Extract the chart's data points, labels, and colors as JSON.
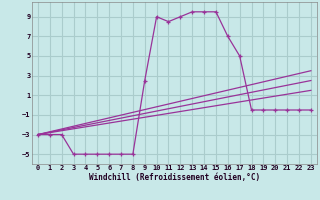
{
  "background_color": "#c8e8e8",
  "grid_color": "#aacccc",
  "line_color": "#993399",
  "xlabel": "Windchill (Refroidissement éolien,°C)",
  "xlim": [
    -0.5,
    23.5
  ],
  "ylim": [
    -6,
    10.5
  ],
  "yticks": [
    -5,
    -3,
    -1,
    1,
    3,
    5,
    7,
    9
  ],
  "xticks": [
    0,
    1,
    2,
    3,
    4,
    5,
    6,
    7,
    8,
    9,
    10,
    11,
    12,
    13,
    14,
    15,
    16,
    17,
    18,
    19,
    20,
    21,
    22,
    23
  ],
  "line1_x": [
    0,
    1,
    2,
    3,
    4,
    5,
    6,
    7,
    8,
    9,
    10,
    11,
    12,
    13,
    14,
    15,
    16,
    17,
    18,
    19,
    20,
    21,
    22,
    23
  ],
  "line1_y": [
    -3,
    -3,
    -3,
    -5,
    -5,
    -5,
    -5,
    -5,
    -5,
    2.5,
    9,
    8.5,
    9,
    9.5,
    9.5,
    9.5,
    7,
    5,
    -0.5,
    -0.5,
    -0.5,
    -0.5,
    -0.5,
    -0.5
  ],
  "line2_x": [
    0,
    23
  ],
  "line2_y": [
    -3,
    3.5
  ],
  "line3_x": [
    0,
    23
  ],
  "line3_y": [
    -3,
    2.5
  ],
  "line4_x": [
    0,
    23
  ],
  "line4_y": [
    -3,
    1.5
  ]
}
